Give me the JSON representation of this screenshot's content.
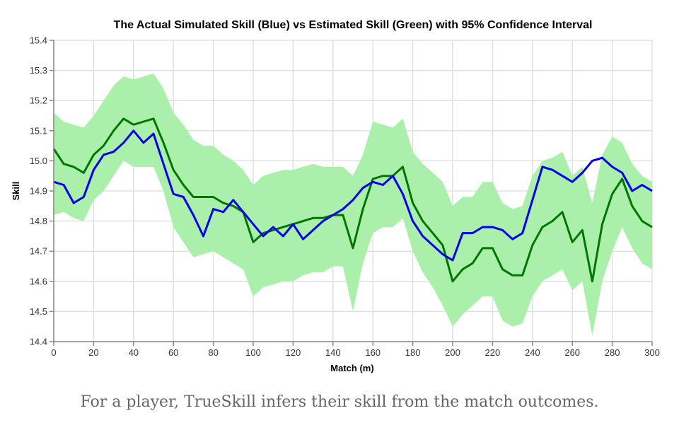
{
  "chart_data": {
    "type": "line",
    "title": "The Actual Simulated Skill (Blue) vs Estimated Skill (Green) with 95% Confidence Interval",
    "xlabel": "Match (m)",
    "ylabel": "Skill",
    "xlim": [
      0,
      300
    ],
    "ylim": [
      14.4,
      15.4
    ],
    "grid": true,
    "x_ticks": [
      "0",
      "20",
      "40",
      "60",
      "80",
      "100",
      "120",
      "140",
      "160",
      "180",
      "200",
      "220",
      "240",
      "260",
      "280",
      "300"
    ],
    "y_ticks": [
      "14.4",
      "14.5",
      "14.6",
      "14.7",
      "14.8",
      "14.9",
      "15.0",
      "15.1",
      "15.2",
      "15.3",
      "15.4"
    ],
    "x": [
      0,
      5,
      10,
      15,
      20,
      25,
      30,
      35,
      40,
      45,
      50,
      55,
      60,
      65,
      70,
      75,
      80,
      85,
      90,
      95,
      100,
      105,
      110,
      115,
      120,
      125,
      130,
      135,
      140,
      145,
      150,
      155,
      160,
      165,
      170,
      175,
      180,
      185,
      190,
      195,
      200,
      205,
      210,
      215,
      220,
      225,
      230,
      235,
      240,
      245,
      250,
      255,
      260,
      265,
      270,
      275,
      280,
      285,
      290,
      295,
      300
    ],
    "series": [
      {
        "name": "Actual Simulated Skill",
        "color": "#0000ee",
        "values": [
          14.93,
          14.92,
          14.86,
          14.88,
          14.97,
          15.02,
          15.03,
          15.06,
          15.1,
          15.06,
          15.09,
          14.99,
          14.89,
          14.88,
          14.82,
          14.75,
          14.84,
          14.83,
          14.87,
          14.83,
          14.79,
          14.75,
          14.78,
          14.75,
          14.79,
          14.74,
          14.77,
          14.8,
          14.82,
          14.84,
          14.87,
          14.91,
          14.93,
          14.92,
          14.95,
          14.89,
          14.8,
          14.75,
          14.72,
          14.69,
          14.67,
          14.76,
          14.76,
          14.78,
          14.78,
          14.77,
          14.74,
          14.76,
          14.87,
          14.98,
          14.97,
          14.95,
          14.93,
          14.96,
          15.0,
          15.01,
          14.98,
          14.96,
          14.9,
          14.92,
          14.9
        ]
      },
      {
        "name": "Estimated Skill",
        "color": "#007700",
        "values": [
          15.04,
          14.99,
          14.98,
          14.96,
          15.02,
          15.05,
          15.1,
          15.14,
          15.12,
          15.13,
          15.14,
          15.06,
          14.97,
          14.92,
          14.88,
          14.88,
          14.88,
          14.86,
          14.85,
          14.83,
          14.73,
          14.76,
          14.77,
          14.78,
          14.79,
          14.8,
          14.81,
          14.81,
          14.82,
          14.82,
          14.71,
          14.84,
          14.94,
          14.95,
          14.95,
          14.98,
          14.86,
          14.8,
          14.76,
          14.72,
          14.6,
          14.64,
          14.66,
          14.71,
          14.71,
          14.64,
          14.62,
          14.62,
          14.72,
          14.78,
          14.8,
          14.83,
          14.73,
          14.77,
          14.6,
          14.79,
          14.89,
          14.94,
          14.85,
          14.8,
          14.78
        ]
      }
    ],
    "confidence_interval": {
      "name": "95% Confidence Interval",
      "color": "#aaf0aa",
      "upper": [
        15.16,
        15.13,
        15.12,
        15.11,
        15.15,
        15.2,
        15.25,
        15.28,
        15.27,
        15.28,
        15.29,
        15.24,
        15.16,
        15.12,
        15.07,
        15.05,
        15.05,
        15.02,
        15.0,
        14.97,
        14.92,
        14.95,
        14.96,
        14.97,
        14.97,
        14.98,
        14.99,
        14.98,
        14.98,
        14.98,
        14.95,
        15.02,
        15.13,
        15.12,
        15.11,
        15.14,
        15.03,
        14.99,
        14.96,
        14.93,
        14.85,
        14.88,
        14.88,
        14.93,
        14.93,
        14.86,
        14.84,
        14.85,
        14.95,
        15.0,
        15.01,
        15.03,
        14.95,
        14.98,
        14.86,
        15.02,
        15.08,
        15.06,
        14.99,
        14.95,
        14.93
      ],
      "lower": [
        14.82,
        14.83,
        14.81,
        14.8,
        14.87,
        14.9,
        14.95,
        15.0,
        14.98,
        14.98,
        14.98,
        14.9,
        14.78,
        14.73,
        14.68,
        14.69,
        14.7,
        14.68,
        14.66,
        14.64,
        14.55,
        14.58,
        14.59,
        14.6,
        14.6,
        14.62,
        14.63,
        14.63,
        14.65,
        14.65,
        14.5,
        14.66,
        14.76,
        14.78,
        14.78,
        14.81,
        14.7,
        14.63,
        14.58,
        14.52,
        14.45,
        14.49,
        14.52,
        14.55,
        14.55,
        14.47,
        14.45,
        14.46,
        14.55,
        14.6,
        14.62,
        14.64,
        14.57,
        14.6,
        14.42,
        14.6,
        14.7,
        14.78,
        14.71,
        14.66,
        14.64
      ]
    }
  },
  "caption": "For a player, TrueSkill infers their skill from the match outcomes."
}
